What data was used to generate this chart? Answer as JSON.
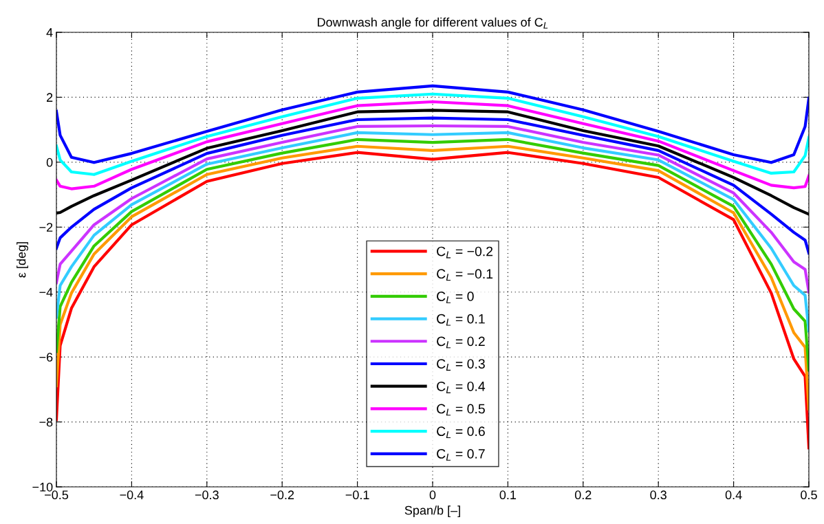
{
  "chart_data": {
    "type": "line",
    "title": "Downwash angle for different values of C$_{L}$",
    "xlabel": "Span/b [–]",
    "ylabel": "ε [deg]",
    "x": [
      -0.5,
      -0.495,
      -0.48,
      -0.45,
      -0.4,
      -0.3,
      -0.2,
      -0.1,
      0,
      0.1,
      0.2,
      0.3,
      0.4,
      0.45,
      0.48,
      0.495,
      0.5
    ],
    "series": [
      {
        "name": "C$_{L}$ = −0.2",
        "color": "#ff0000",
        "values": [
          -7.93,
          -5.65,
          -4.5,
          -3.22,
          -1.93,
          -0.59,
          -0.04,
          0.3,
          0.09,
          0.3,
          -0.04,
          -0.47,
          -1.77,
          -4.03,
          -6.06,
          -6.6,
          -8.8
        ]
      },
      {
        "name": "C$_{L}$ = −0.1",
        "color": "#ff9900",
        "values": [
          -6.89,
          -5.0,
          -4.03,
          -2.83,
          -1.68,
          -0.38,
          0.13,
          0.49,
          0.36,
          0.49,
          0.13,
          -0.26,
          -1.56,
          -3.55,
          -5.25,
          -5.7,
          -7.6
        ]
      },
      {
        "name": "C$_{L}$ = 0",
        "color": "#33cc00",
        "values": [
          -5.83,
          -4.45,
          -3.7,
          -2.58,
          -1.52,
          -0.22,
          0.28,
          0.7,
          0.61,
          0.7,
          0.28,
          -0.1,
          -1.36,
          -3.14,
          -4.52,
          -4.9,
          -6.4
        ]
      },
      {
        "name": "C$_{L}$ = 0.1",
        "color": "#33ccff",
        "values": [
          -4.77,
          -3.8,
          -3.22,
          -2.25,
          -1.31,
          -0.06,
          0.44,
          0.91,
          0.85,
          0.91,
          0.44,
          0.07,
          -1.15,
          -2.65,
          -3.8,
          -4.1,
          -5.2
        ]
      },
      {
        "name": "C$_{L}$ = 0.2",
        "color": "#cc33ff",
        "values": [
          -3.71,
          -3.14,
          -2.74,
          -1.93,
          -1.12,
          0.1,
          0.61,
          1.1,
          1.12,
          1.1,
          0.61,
          0.22,
          -0.95,
          -2.16,
          -3.07,
          -3.3,
          -4.0
        ]
      },
      {
        "name": "C$_{L}$ = 0.3",
        "color": "#0000ff",
        "values": [
          -2.65,
          -2.33,
          -2.0,
          -1.45,
          -0.79,
          0.27,
          0.83,
          1.31,
          1.36,
          1.31,
          0.83,
          0.36,
          -0.71,
          -1.6,
          -2.16,
          -2.4,
          -2.8
        ]
      },
      {
        "name": "C$_{L}$ = 0.4",
        "color": "#000000",
        "values": [
          -1.57,
          -1.55,
          -1.36,
          -1.03,
          -0.55,
          0.43,
          0.97,
          1.55,
          1.6,
          1.55,
          0.97,
          0.5,
          -0.47,
          -1.03,
          -1.4,
          -1.55,
          -1.6
        ]
      },
      {
        "name": "C$_{L}$ = 0.5",
        "color": "#ff00ff",
        "values": [
          -0.55,
          -0.74,
          -0.82,
          -0.74,
          -0.22,
          0.63,
          1.19,
          1.74,
          1.86,
          1.74,
          1.19,
          0.65,
          -0.26,
          -0.71,
          -0.79,
          -0.75,
          -0.42
        ]
      },
      {
        "name": "C$_{L}$ = 0.6",
        "color": "#00ffff",
        "values": [
          0.5,
          0.07,
          -0.3,
          -0.38,
          0.03,
          0.79,
          1.4,
          1.97,
          2.1,
          1.97,
          1.4,
          0.79,
          0.03,
          -0.34,
          -0.3,
          0.2,
          0.76
        ]
      },
      {
        "name": "C$_{L}$ = 0.7",
        "color": "#0000ff",
        "values": [
          1.57,
          0.83,
          0.15,
          -0.01,
          0.27,
          0.95,
          1.61,
          2.16,
          2.35,
          2.16,
          1.61,
          0.95,
          0.23,
          -0.01,
          0.23,
          1.1,
          1.97
        ]
      }
    ],
    "xlim": [
      -0.5,
      0.5
    ],
    "xticks": [
      {
        "value": -0.5,
        "label": "−0.5"
      },
      {
        "value": -0.4,
        "label": "−0.4"
      },
      {
        "value": -0.3,
        "label": "−0.3"
      },
      {
        "value": -0.2,
        "label": "−0.2"
      },
      {
        "value": -0.1,
        "label": "−0.1"
      },
      0,
      0.1,
      0.2,
      0.3,
      0.4,
      0.5
    ],
    "ylim": [
      -10,
      4
    ],
    "yticks": [
      {
        "value": -10,
        "label": "−10"
      },
      {
        "value": -8,
        "label": "−8"
      },
      {
        "value": -6,
        "label": "−6"
      },
      {
        "value": -4,
        "label": "−4"
      },
      {
        "value": -2,
        "label": "−2"
      },
      0,
      2,
      4
    ],
    "grid": true,
    "legend": "bottom",
    "line_style": "solid",
    "marker": "none"
  }
}
